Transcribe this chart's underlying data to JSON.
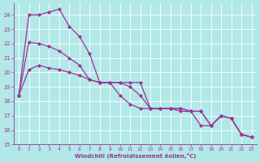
{
  "xlabel": "Windchill (Refroidissement éolien,°C)",
  "bg_color": "#b2e8e8",
  "line_color": "#993399",
  "grid_color": "#ffffff",
  "xlim": [
    -0.5,
    23.5
  ],
  "ylim": [
    15,
    24.8
  ],
  "yticks": [
    15,
    16,
    17,
    18,
    19,
    20,
    21,
    22,
    23,
    24
  ],
  "xticks": [
    0,
    1,
    2,
    3,
    4,
    5,
    6,
    7,
    8,
    9,
    10,
    11,
    12,
    13,
    14,
    15,
    16,
    17,
    18,
    19,
    20,
    21,
    22,
    23
  ],
  "series": [
    [
      18.4,
      24.0,
      24.0,
      24.2,
      24.4,
      23.2,
      22.5,
      21.3,
      19.3,
      19.3,
      18.4,
      17.8,
      17.5,
      17.5,
      17.5,
      17.5,
      17.3,
      17.3,
      16.3,
      16.3,
      17.0,
      16.8,
      15.7,
      15.5
    ],
    [
      18.4,
      22.1,
      22.0,
      21.8,
      21.5,
      21.0,
      20.5,
      19.5,
      19.3,
      19.3,
      19.3,
      19.3,
      19.3,
      17.5,
      17.5,
      17.5,
      17.5,
      17.3,
      17.3,
      16.3,
      17.0,
      16.8,
      15.7,
      15.5
    ],
    [
      18.4,
      20.2,
      20.5,
      20.3,
      20.2,
      20.0,
      19.8,
      19.5,
      19.3,
      19.3,
      19.3,
      19.0,
      18.4,
      17.5,
      17.5,
      17.5,
      17.5,
      17.3,
      17.3,
      16.3,
      17.0,
      16.8,
      15.7,
      15.5
    ]
  ]
}
